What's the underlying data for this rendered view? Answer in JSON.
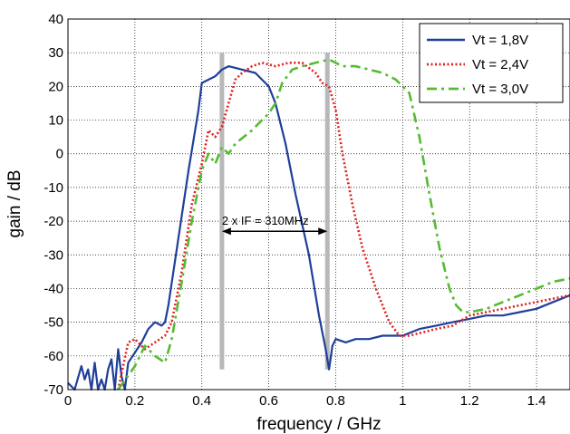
{
  "chart_data": {
    "type": "line",
    "title": "",
    "xlabel": "frequency / GHz",
    "ylabel": "gain / dB",
    "xlim": [
      0,
      1.5
    ],
    "ylim": [
      -70,
      40
    ],
    "x_ticks": [
      0,
      0.2,
      0.4,
      0.6,
      0.8,
      1,
      1.2,
      1.4
    ],
    "x_tick_labels": [
      "0",
      "0.2",
      "0.4",
      "0.6",
      "0.8",
      "1",
      "1.2",
      "1.4"
    ],
    "y_ticks": [
      -70,
      -60,
      -50,
      -40,
      -30,
      -20,
      -10,
      0,
      10,
      20,
      30,
      40
    ],
    "y_tick_labels": [
      "-70",
      "-60",
      "-50",
      "-40",
      "-30",
      "-20",
      "-10",
      "0",
      "10",
      "20",
      "30",
      "40"
    ],
    "grid": true,
    "legend_position": "top-right",
    "series": [
      {
        "name": "Vt = 1,8V",
        "color": "#1f3f99",
        "style": "solid",
        "points": [
          [
            0,
            -68
          ],
          [
            0.02,
            -70
          ],
          [
            0.04,
            -63
          ],
          [
            0.05,
            -67
          ],
          [
            0.06,
            -64
          ],
          [
            0.07,
            -70
          ],
          [
            0.08,
            -62
          ],
          [
            0.09,
            -70
          ],
          [
            0.1,
            -67
          ],
          [
            0.11,
            -70
          ],
          [
            0.12,
            -64
          ],
          [
            0.13,
            -61
          ],
          [
            0.14,
            -70
          ],
          [
            0.15,
            -58
          ],
          [
            0.16,
            -66
          ],
          [
            0.17,
            -70
          ],
          [
            0.18,
            -62
          ],
          [
            0.2,
            -59
          ],
          [
            0.22,
            -56
          ],
          [
            0.24,
            -52
          ],
          [
            0.26,
            -50
          ],
          [
            0.28,
            -51
          ],
          [
            0.29,
            -50
          ],
          [
            0.3,
            -45
          ],
          [
            0.33,
            -25
          ],
          [
            0.36,
            -5
          ],
          [
            0.39,
            13
          ],
          [
            0.4,
            21
          ],
          [
            0.42,
            22
          ],
          [
            0.44,
            23
          ],
          [
            0.46,
            25
          ],
          [
            0.48,
            26
          ],
          [
            0.52,
            25
          ],
          [
            0.56,
            24
          ],
          [
            0.6,
            20
          ],
          [
            0.62,
            15
          ],
          [
            0.65,
            3
          ],
          [
            0.68,
            -12
          ],
          [
            0.72,
            -30
          ],
          [
            0.75,
            -48
          ],
          [
            0.77,
            -58
          ],
          [
            0.78,
            -64
          ],
          [
            0.79,
            -57
          ],
          [
            0.8,
            -55
          ],
          [
            0.83,
            -56
          ],
          [
            0.86,
            -55
          ],
          [
            0.9,
            -55
          ],
          [
            0.94,
            -54
          ],
          [
            0.98,
            -54
          ],
          [
            1,
            -54
          ],
          [
            1.05,
            -52
          ],
          [
            1.1,
            -51
          ],
          [
            1.15,
            -50
          ],
          [
            1.2,
            -49
          ],
          [
            1.25,
            -48
          ],
          [
            1.3,
            -48
          ],
          [
            1.35,
            -47
          ],
          [
            1.4,
            -46
          ],
          [
            1.45,
            -44
          ],
          [
            1.5,
            -42
          ]
        ]
      },
      {
        "name": "Vt = 2,4V",
        "color": "#dd2222",
        "style": "dotted",
        "points": [
          [
            0.15,
            -70
          ],
          [
            0.18,
            -56
          ],
          [
            0.2,
            -55
          ],
          [
            0.23,
            -58
          ],
          [
            0.26,
            -56
          ],
          [
            0.29,
            -54
          ],
          [
            0.31,
            -50
          ],
          [
            0.34,
            -35
          ],
          [
            0.37,
            -15
          ],
          [
            0.4,
            -3
          ],
          [
            0.42,
            7
          ],
          [
            0.44,
            5
          ],
          [
            0.46,
            8
          ],
          [
            0.48,
            15
          ],
          [
            0.5,
            22
          ],
          [
            0.52,
            24
          ],
          [
            0.55,
            26
          ],
          [
            0.58,
            27
          ],
          [
            0.62,
            26
          ],
          [
            0.66,
            27
          ],
          [
            0.7,
            27
          ],
          [
            0.74,
            24
          ],
          [
            0.76,
            21
          ],
          [
            0.78,
            20
          ],
          [
            0.8,
            13
          ],
          [
            0.82,
            0
          ],
          [
            0.85,
            -15
          ],
          [
            0.88,
            -28
          ],
          [
            0.92,
            -40
          ],
          [
            0.96,
            -50
          ],
          [
            0.99,
            -54
          ],
          [
            1.02,
            -54
          ],
          [
            1.06,
            -53
          ],
          [
            1.1,
            -52
          ],
          [
            1.15,
            -51
          ],
          [
            1.2,
            -48
          ],
          [
            1.25,
            -47
          ],
          [
            1.3,
            -46
          ],
          [
            1.35,
            -45
          ],
          [
            1.4,
            -44
          ],
          [
            1.45,
            -43
          ],
          [
            1.5,
            -42
          ]
        ]
      },
      {
        "name": "Vt = 3,0V",
        "color": "#55bb33",
        "style": "dashdot",
        "points": [
          [
            0.15,
            -70
          ],
          [
            0.2,
            -63
          ],
          [
            0.23,
            -57
          ],
          [
            0.26,
            -60
          ],
          [
            0.29,
            -62
          ],
          [
            0.31,
            -55
          ],
          [
            0.34,
            -38
          ],
          [
            0.37,
            -20
          ],
          [
            0.4,
            -5
          ],
          [
            0.42,
            0
          ],
          [
            0.44,
            -3
          ],
          [
            0.46,
            2
          ],
          [
            0.48,
            0
          ],
          [
            0.5,
            3
          ],
          [
            0.55,
            7
          ],
          [
            0.6,
            12
          ],
          [
            0.62,
            15
          ],
          [
            0.64,
            21
          ],
          [
            0.67,
            25
          ],
          [
            0.7,
            26
          ],
          [
            0.74,
            27
          ],
          [
            0.78,
            28
          ],
          [
            0.82,
            26
          ],
          [
            0.86,
            26
          ],
          [
            0.9,
            25
          ],
          [
            0.94,
            24
          ],
          [
            0.98,
            22
          ],
          [
            1.02,
            18
          ],
          [
            1.05,
            5
          ],
          [
            1.08,
            -12
          ],
          [
            1.11,
            -28
          ],
          [
            1.14,
            -40
          ],
          [
            1.16,
            -45
          ],
          [
            1.18,
            -47
          ],
          [
            1.2,
            -47
          ],
          [
            1.25,
            -46
          ],
          [
            1.3,
            -44
          ],
          [
            1.35,
            -42
          ],
          [
            1.4,
            -40
          ],
          [
            1.45,
            -38
          ],
          [
            1.5,
            -37
          ]
        ]
      }
    ],
    "markers": [
      {
        "x": 0.46,
        "y_from": -64,
        "y_to": 30,
        "color": "#b8b8b8"
      },
      {
        "x": 0.775,
        "y_from": -64,
        "y_to": 30,
        "color": "#b8b8b8"
      }
    ],
    "annotation": {
      "text": "2 x IF = 310MHz",
      "x_from": 0.46,
      "x_to": 0.775,
      "y": -23,
      "text_x": 0.46,
      "text_y": -21
    }
  }
}
